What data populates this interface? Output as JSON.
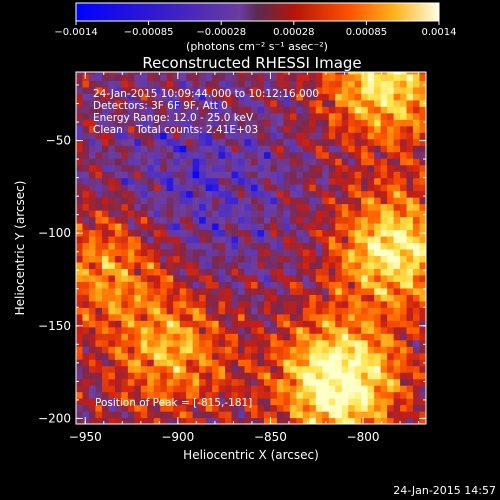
{
  "colorbar": {
    "ticks": [
      "-0.0014",
      "-0.00085",
      "-0.00028",
      "0.00028",
      "0.00085",
      "0.0014"
    ],
    "unit_label": "(photons cm⁻² s⁻¹ asec⁻²)",
    "range": [
      -0.0014,
      0.0014
    ]
  },
  "chart_data": {
    "type": "heatmap",
    "title": "Reconstructed RHESSI Image",
    "xlabel": "Heliocentric X (arcsec)",
    "ylabel": "Heliocentric Y (arcsec)",
    "xlim": [
      -955,
      -766
    ],
    "ylim": [
      -203,
      -13
    ],
    "x_ticks": [
      {
        "value": -950,
        "label": "−950"
      },
      {
        "value": -900,
        "label": "−900"
      },
      {
        "value": -850,
        "label": "−850"
      },
      {
        "value": -800,
        "label": "−800"
      }
    ],
    "y_ticks": [
      {
        "value": -50,
        "label": "−50"
      },
      {
        "value": -100,
        "label": "−100"
      },
      {
        "value": -150,
        "label": "−150"
      },
      {
        "value": -200,
        "label": "−200"
      }
    ],
    "annotations": [
      "24-Jan-2015 10:09:44.000 to 10:12:16.000",
      "Detectors: 3F 6F 9F, Att 0",
      "Energy Range: 12.0 - 25.0 keV",
      "Clean    Total counts: 2.41E+03"
    ],
    "peak_label": "Position of Peak = [-815,-181]",
    "peak": [
      -815,
      -181
    ],
    "bright_sources": [
      {
        "x": -815,
        "y": -181,
        "level": 1.0
      },
      {
        "x": -785,
        "y": -110,
        "level": 0.8
      },
      {
        "x": -790,
        "y": -20,
        "level": 0.75
      },
      {
        "x": -905,
        "y": -165,
        "level": 0.55
      },
      {
        "x": -940,
        "y": -120,
        "level": 0.5
      }
    ]
  },
  "footer": {
    "timestamp": "24-Jan-2015 14:57"
  },
  "colors": {
    "background": "#000000",
    "foreground": "#ffffff",
    "colormap": [
      "#0000ff",
      "#4b2dc8",
      "#6b3fa8",
      "#7a2850",
      "#c81e14",
      "#ff5a00",
      "#ffa014",
      "#ffe650",
      "#ffffc8"
    ]
  }
}
